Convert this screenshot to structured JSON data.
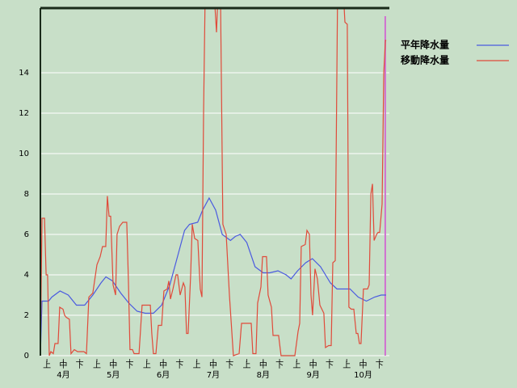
{
  "chart_data": {
    "type": "line",
    "xlim": [
      0,
      214
    ],
    "ylim": [
      0,
      17.2
    ],
    "yticks": [
      0,
      2,
      4,
      6,
      8,
      10,
      12,
      14
    ],
    "xticks": [
      {
        "value": 4,
        "label": "上"
      },
      {
        "value": 14,
        "label": "中"
      },
      {
        "value": 24,
        "label": "下"
      },
      {
        "value": 34.5,
        "label": "上"
      },
      {
        "value": 44.5,
        "label": "中"
      },
      {
        "value": 54.5,
        "label": "下"
      },
      {
        "value": 65,
        "label": "上"
      },
      {
        "value": 75,
        "label": "中"
      },
      {
        "value": 85,
        "label": "下"
      },
      {
        "value": 95.5,
        "label": "上"
      },
      {
        "value": 105.5,
        "label": "中"
      },
      {
        "value": 115.5,
        "label": "下"
      },
      {
        "value": 126,
        "label": "上"
      },
      {
        "value": 136,
        "label": "中"
      },
      {
        "value": 146,
        "label": "下"
      },
      {
        "value": 156.5,
        "label": "上"
      },
      {
        "value": 166.5,
        "label": "中"
      },
      {
        "value": 176.5,
        "label": "下"
      },
      {
        "value": 187,
        "label": "上"
      },
      {
        "value": 197,
        "label": "中"
      },
      {
        "value": 207,
        "label": "下"
      }
    ],
    "months": [
      {
        "value": 14,
        "label": "4月"
      },
      {
        "value": 44.5,
        "label": "5月"
      },
      {
        "value": 75,
        "label": "6月"
      },
      {
        "value": 105.5,
        "label": "7月"
      },
      {
        "value": 136,
        "label": "8月"
      },
      {
        "value": 166.5,
        "label": "9月"
      },
      {
        "value": 197,
        "label": "10月"
      }
    ],
    "grid": true,
    "today_x": 210.5,
    "series": [
      {
        "name": "平年降水量",
        "color": "#4a5ae0",
        "x": [
          0,
          1,
          5,
          7,
          12,
          17,
          22,
          27,
          32,
          37,
          40,
          44,
          49,
          54,
          59,
          64,
          69,
          74,
          79,
          84,
          88,
          91,
          96,
          99,
          103,
          107,
          111,
          116,
          119,
          122,
          126,
          131,
          136,
          140,
          145,
          150,
          153,
          157,
          162,
          166,
          171,
          177,
          181,
          184,
          189,
          194,
          199,
          204,
          208,
          211
        ],
        "values": [
          0,
          2.7,
          2.7,
          2.9,
          3.2,
          3.0,
          2.5,
          2.5,
          3.0,
          3.6,
          3.9,
          3.7,
          3.1,
          2.6,
          2.2,
          2.1,
          2.1,
          2.5,
          3.5,
          5.0,
          6.2,
          6.5,
          6.6,
          7.2,
          7.8,
          7.2,
          6.0,
          5.7,
          5.9,
          6.0,
          5.6,
          4.4,
          4.1,
          4.1,
          4.2,
          4.0,
          3.8,
          4.2,
          4.6,
          4.8,
          4.4,
          3.6,
          3.3,
          3.3,
          3.3,
          2.9,
          2.7,
          2.9,
          3.0,
          3.0
        ]
      },
      {
        "name": "移動降水量",
        "color": "#e04a3a",
        "x": [
          0,
          1,
          2.5,
          3.5,
          4.4,
          5.4,
          6.4,
          7.9,
          8.9,
          10.8,
          11.8,
          13.8,
          14.8,
          15.8,
          17.7,
          18.7,
          20.7,
          22.7,
          26.6,
          28.1,
          29.6,
          32,
          34.5,
          36.5,
          37.9,
          39.9,
          40.9,
          41.9,
          42.9,
          44.4,
          45.9,
          46.8,
          48.3,
          50.3,
          52.7,
          53.7,
          54.7,
          56.2,
          57.2,
          60.2,
          62.1,
          67.1,
          68,
          69,
          70.5,
          72,
          74,
          75.4,
          77.4,
          78.4,
          79.4,
          80.9,
          82.8,
          83.8,
          85.3,
          87.3,
          88.2,
          89.2,
          90.2,
          91.7,
          92.7,
          94.2,
          96.1,
          97.6,
          98.6,
          99.6,
          100.6,
          102.5,
          106,
          107.5,
          108.5,
          109.9,
          111.4,
          113.4,
          115.4,
          117.8,
          121.3,
          122.8,
          128.7,
          129.7,
          131.6,
          132.6,
          134.6,
          135.6,
          138,
          139,
          141,
          142,
          145.4,
          146.9,
          155.3,
          157.3,
          158.3,
          159.2,
          161.7,
          162.7,
          164.2,
          165.2,
          166.1,
          167.6,
          169.1,
          170.6,
          173,
          174,
          176,
          177.5,
          178.5,
          180,
          181.4,
          184.9,
          185.9,
          187.3,
          188.3,
          189.8,
          191.3,
          192.8,
          193.8,
          194.7,
          195.7,
          197.2,
          199.7,
          200.7,
          201.7,
          202.7,
          203.7,
          205.2,
          206.1,
          207.1,
          208.6,
          209.6,
          210.6,
          211.1
        ],
        "values": [
          0,
          6.8,
          6.8,
          4.0,
          4.0,
          0,
          0.2,
          0.1,
          0.6,
          0.6,
          2.4,
          2.3,
          2.0,
          1.9,
          1.8,
          0.1,
          0.3,
          0.2,
          0.2,
          0.1,
          2.9,
          3.1,
          4.5,
          4.9,
          5.4,
          5.4,
          7.9,
          6.9,
          6.9,
          3.5,
          3.0,
          6.0,
          6.4,
          6.6,
          6.6,
          3.8,
          0.3,
          0.3,
          0.1,
          0.1,
          2.5,
          2.5,
          1.1,
          0.1,
          0.1,
          1.5,
          1.5,
          3.2,
          3.3,
          3.7,
          2.8,
          3.3,
          4.0,
          4.0,
          3.0,
          3.6,
          3.4,
          1.1,
          1.1,
          4.0,
          6.5,
          5.8,
          5.7,
          3.3,
          2.9,
          12,
          18,
          18,
          18,
          16,
          18,
          18,
          6.5,
          6.0,
          3.0,
          0,
          0.1,
          1.6,
          1.6,
          0.1,
          0.1,
          2.6,
          3.4,
          4.9,
          4.9,
          3.0,
          2.4,
          1.0,
          1.0,
          0,
          0,
          1.2,
          1.6,
          5.4,
          5.5,
          6.2,
          6.0,
          3.0,
          2.0,
          4.3,
          3.8,
          2.5,
          2.1,
          0.4,
          0.5,
          0.5,
          4.6,
          4.7,
          18,
          18,
          16.5,
          16.4,
          2.4,
          2.3,
          2.3,
          1.1,
          1.1,
          0.6,
          0.6,
          3.3,
          3.3,
          3.5,
          8.0,
          8.5,
          5.7,
          6.0,
          6.1,
          6.1,
          7.5,
          14.0,
          15.6,
          15.6
        ]
      }
    ]
  }
}
